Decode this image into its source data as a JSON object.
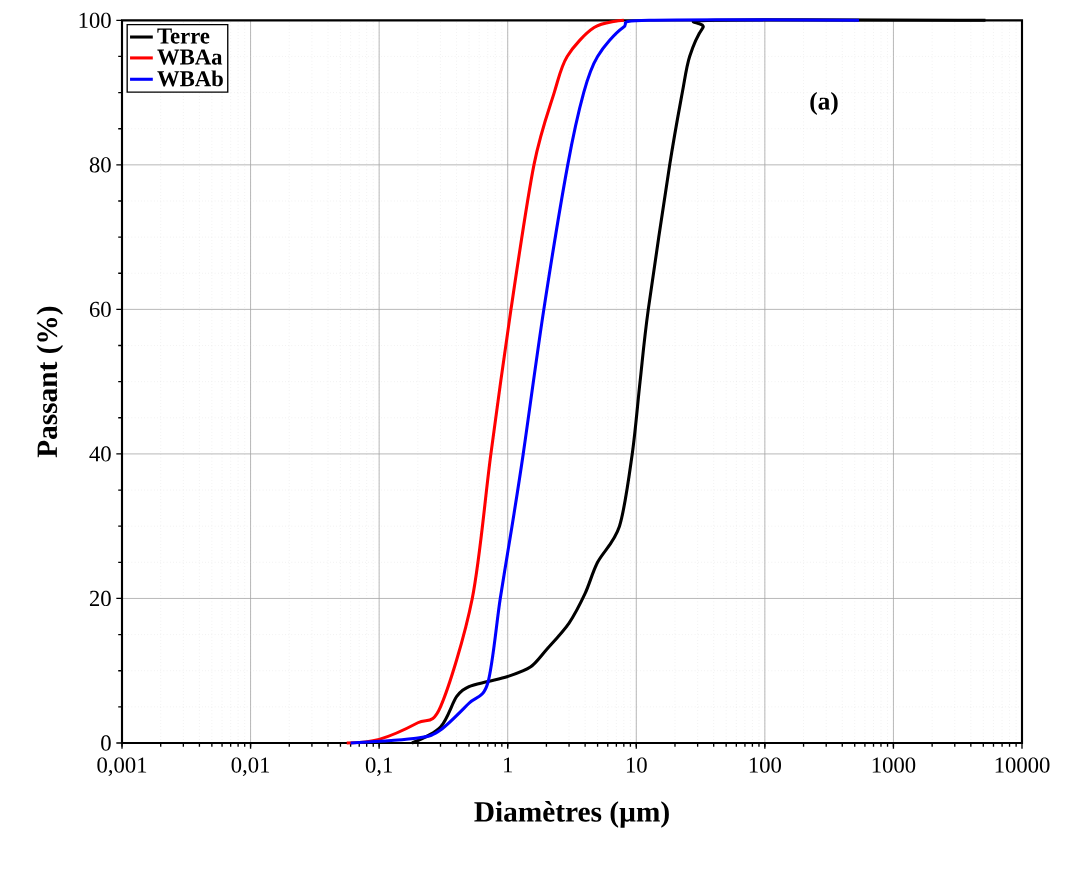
{
  "chart_data": {
    "type": "line",
    "xlabel": "Diamètres (µm)",
    "ylabel": "Passant (%)",
    "annotations": [
      "(a)"
    ],
    "log": "x",
    "grid": true,
    "legend": "top left",
    "marker": "none",
    "line_style": "solid",
    "xlim": [
      0.001,
      10000
    ],
    "ylim": [
      0,
      100
    ],
    "xticks": [
      {
        "value": 0.001,
        "label": "0,001"
      },
      {
        "value": 0.01,
        "label": "0,01"
      },
      {
        "value": 0.1,
        "label": "0,1"
      },
      1,
      10,
      100,
      1000,
      10000
    ],
    "yticks": [
      0,
      20,
      40,
      60,
      80,
      100
    ],
    "series": [
      {
        "name": "Terre",
        "color": "#000000",
        "x": [
          0.18,
          0.3,
          0.4,
          0.5,
          0.7,
          1,
          1.5,
          2,
          3,
          4,
          5,
          7.4,
          9.3,
          10.7,
          12.4,
          18.2,
          22.8,
          26,
          33,
          41,
          5200
        ],
        "values": [
          0,
          2.2,
          6.4,
          7.8,
          8.5,
          9.2,
          10.5,
          12.9,
          16.6,
          20.7,
          25,
          30,
          40,
          50,
          60,
          80,
          90,
          95,
          99,
          100,
          100
        ]
      },
      {
        "name": "WBAa",
        "color": "#ff0000",
        "x": [
          0.056,
          0.1,
          0.2,
          0.3,
          0.53,
          0.74,
          1.06,
          1.6,
          2.3,
          2.9,
          4.7,
          8
        ],
        "values": [
          0,
          0.5,
          2.8,
          5,
          20,
          40,
          60,
          80,
          90,
          95,
          99,
          100
        ]
      },
      {
        "name": "WBAb",
        "color": "#0000ff",
        "x": [
          0.06,
          0.2,
          0.3,
          0.5,
          0.7,
          0.875,
          1.08,
          1.32,
          1.91,
          2.93,
          3.9,
          5.0,
          7.9,
          12.6,
          540
        ],
        "values": [
          0,
          0.7,
          1.8,
          5.5,
          8.3,
          20,
          30,
          40,
          60,
          80,
          90,
          95,
          99,
          100,
          100
        ]
      }
    ]
  }
}
